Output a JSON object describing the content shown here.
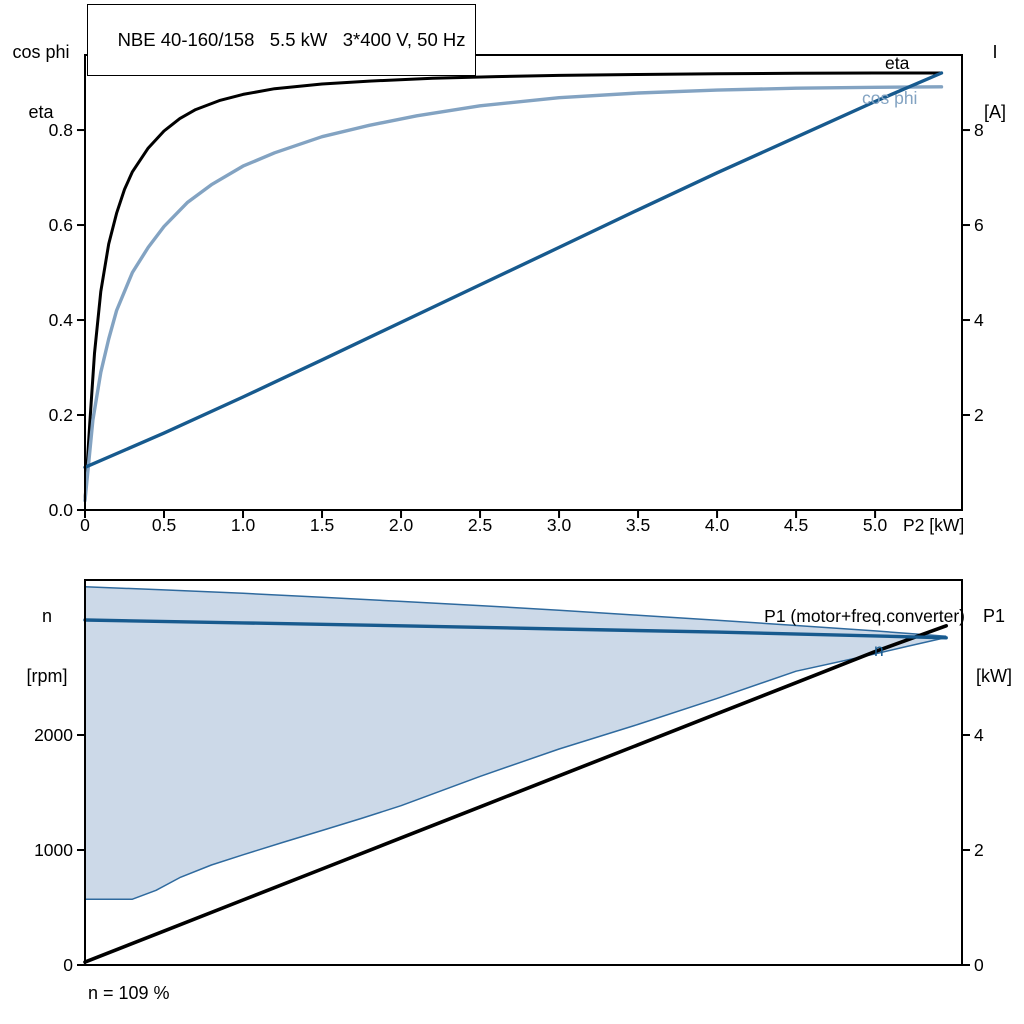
{
  "colors": {
    "black": "#000000",
    "dark_blue": "#175a8e",
    "light_blue": "#83a3c2",
    "band_fill": "#ccd9e8",
    "band_stroke": "#2f6a9e",
    "background": "#ffffff"
  },
  "chart_data": [
    {
      "type": "line",
      "title": "NBE 40-160/158   5.5 kW   3*400 V, 50 Hz",
      "x_axis": {
        "label": "P2 [kW]",
        "range": [
          0,
          5.55
        ],
        "ticks": [
          [
            0,
            "0"
          ],
          [
            0.5,
            "0.5"
          ],
          [
            1,
            "1.0"
          ],
          [
            1.5,
            "1.5"
          ],
          [
            2,
            "2.0"
          ],
          [
            2.5,
            "2.5"
          ],
          [
            3,
            "3.0"
          ],
          [
            3.5,
            "3.5"
          ],
          [
            4,
            "4.0"
          ],
          [
            4.5,
            "4.5"
          ],
          [
            5,
            "5.0"
          ]
        ]
      },
      "left_axis": {
        "name_lines": [
          "cos phi",
          "eta"
        ],
        "range": [
          0,
          0.958
        ],
        "ticks": [
          [
            0,
            "0.0"
          ],
          [
            0.2,
            "0.2"
          ],
          [
            0.4,
            "0.4"
          ],
          [
            0.6,
            "0.6"
          ],
          [
            0.8,
            "0.8"
          ]
        ]
      },
      "right_axis": {
        "name_lines": [
          "I",
          "[A]"
        ],
        "range": [
          0,
          9.58
        ],
        "ticks": [
          [
            2,
            "2"
          ],
          [
            4,
            "4"
          ],
          [
            6,
            "6"
          ],
          [
            8,
            "8"
          ]
        ]
      },
      "series": [
        {
          "name": "eta",
          "axis": "left",
          "color": "#000000",
          "width": 3,
          "points": [
            [
              0,
              0.02
            ],
            [
              0.03,
              0.18
            ],
            [
              0.06,
              0.33
            ],
            [
              0.1,
              0.46
            ],
            [
              0.15,
              0.56
            ],
            [
              0.2,
              0.625
            ],
            [
              0.25,
              0.675
            ],
            [
              0.3,
              0.712
            ],
            [
              0.4,
              0.762
            ],
            [
              0.5,
              0.798
            ],
            [
              0.6,
              0.824
            ],
            [
              0.7,
              0.843
            ],
            [
              0.85,
              0.862
            ],
            [
              1.0,
              0.875
            ],
            [
              1.2,
              0.887
            ],
            [
              1.5,
              0.897
            ],
            [
              1.8,
              0.903
            ],
            [
              2.2,
              0.909
            ],
            [
              2.6,
              0.9125
            ],
            [
              3.0,
              0.915
            ],
            [
              3.5,
              0.917
            ],
            [
              4.0,
              0.9185
            ],
            [
              4.5,
              0.9195
            ],
            [
              5.0,
              0.92
            ],
            [
              5.42,
              0.92
            ]
          ]
        },
        {
          "name": "cos phi",
          "axis": "left",
          "color": "#83a3c2",
          "width": 3.4,
          "points": [
            [
              0,
              0.02
            ],
            [
              0.05,
              0.19
            ],
            [
              0.1,
              0.29
            ],
            [
              0.15,
              0.36
            ],
            [
              0.2,
              0.42
            ],
            [
              0.3,
              0.5
            ],
            [
              0.4,
              0.553
            ],
            [
              0.5,
              0.597
            ],
            [
              0.65,
              0.648
            ],
            [
              0.8,
              0.685
            ],
            [
              1.0,
              0.724
            ],
            [
              1.2,
              0.752
            ],
            [
              1.5,
              0.786
            ],
            [
              1.8,
              0.81
            ],
            [
              2.1,
              0.83
            ],
            [
              2.5,
              0.851
            ],
            [
              3.0,
              0.868
            ],
            [
              3.5,
              0.878
            ],
            [
              4.0,
              0.884
            ],
            [
              4.5,
              0.888
            ],
            [
              5.0,
              0.89
            ],
            [
              5.42,
              0.891
            ]
          ]
        },
        {
          "name": "I",
          "axis": "right",
          "color": "#175a8e",
          "width": 3.4,
          "points": [
            [
              0,
              0.9
            ],
            [
              0.5,
              1.62
            ],
            [
              1.0,
              2.38
            ],
            [
              1.5,
              3.16
            ],
            [
              2.0,
              3.95
            ],
            [
              2.5,
              4.74
            ],
            [
              3.0,
              5.53
            ],
            [
              3.5,
              6.32
            ],
            [
              4.0,
              7.1
            ],
            [
              4.5,
              7.85
            ],
            [
              5.0,
              8.6
            ],
            [
              5.42,
              9.2
            ]
          ]
        }
      ]
    },
    {
      "type": "line",
      "annotation": "n = 109 %",
      "x_axis": {
        "label": "",
        "range": [
          0,
          5.55
        ],
        "ticks": []
      },
      "left_axis": {
        "name_lines": [
          "n",
          "[rpm]"
        ],
        "range": [
          0,
          3348
        ],
        "ticks": [
          [
            0,
            "0"
          ],
          [
            1000,
            "1000"
          ],
          [
            2000,
            "2000"
          ]
        ]
      },
      "right_axis": {
        "name_lines": [
          "P1",
          "[kW]"
        ],
        "range": [
          0,
          6.696
        ],
        "ticks": [
          [
            0,
            "0"
          ],
          [
            2,
            "2"
          ],
          [
            4,
            "4"
          ]
        ]
      },
      "band": {
        "axis": "left",
        "fill": "#ccd9e8",
        "stroke": "#2f6a9e",
        "upper": [
          [
            0,
            3290
          ],
          [
            0.5,
            3262
          ],
          [
            1.0,
            3232
          ],
          [
            1.5,
            3198
          ],
          [
            2.0,
            3162
          ],
          [
            2.5,
            3125
          ],
          [
            3.0,
            3085
          ],
          [
            3.5,
            3042
          ],
          [
            4.0,
            2998
          ],
          [
            4.5,
            2952
          ],
          [
            5.0,
            2905
          ],
          [
            5.45,
            2858
          ]
        ],
        "lower": [
          [
            0,
            572
          ],
          [
            0.3,
            572
          ],
          [
            0.45,
            650
          ],
          [
            0.6,
            760
          ],
          [
            0.8,
            870
          ],
          [
            1.0,
            958
          ],
          [
            1.25,
            1065
          ],
          [
            1.5,
            1170
          ],
          [
            1.75,
            1275
          ],
          [
            2.0,
            1385
          ],
          [
            2.5,
            1640
          ],
          [
            3.0,
            1878
          ],
          [
            3.5,
            2092
          ],
          [
            4.0,
            2318
          ],
          [
            4.5,
            2555
          ],
          [
            5.0,
            2705
          ],
          [
            5.2,
            2770
          ],
          [
            5.45,
            2848
          ]
        ]
      },
      "series": [
        {
          "name": "P1 (motor+freq.converter)",
          "axis": "right",
          "color": "#000000",
          "width": 3.6,
          "points": [
            [
              0,
              0.05
            ],
            [
              0.5,
              0.59
            ],
            [
              1.0,
              1.13
            ],
            [
              1.5,
              1.67
            ],
            [
              2.0,
              2.21
            ],
            [
              2.5,
              2.75
            ],
            [
              3.0,
              3.29
            ],
            [
              3.5,
              3.83
            ],
            [
              4.0,
              4.37
            ],
            [
              4.5,
              4.91
            ],
            [
              5.0,
              5.45
            ],
            [
              5.45,
              5.9
            ]
          ]
        },
        {
          "name": "n",
          "axis": "left",
          "color": "#175a8e",
          "width": 3.4,
          "points": [
            [
              0,
              3000
            ],
            [
              1.0,
              2975
            ],
            [
              2.0,
              2950
            ],
            [
              3.0,
              2922
            ],
            [
              4.0,
              2895
            ],
            [
              5.0,
              2862
            ],
            [
              5.45,
              2845
            ]
          ]
        }
      ]
    }
  ]
}
